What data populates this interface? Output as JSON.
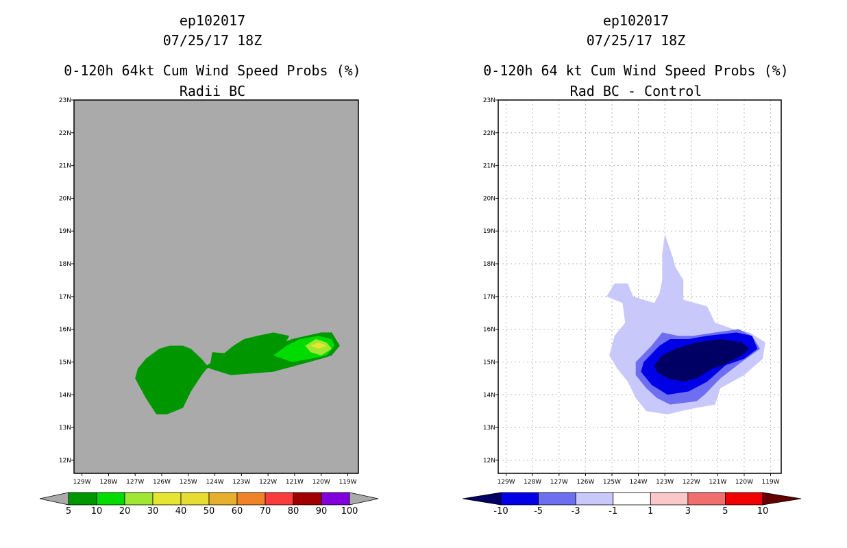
{
  "chart_data": [
    {
      "type": "contour-map",
      "storm_id": "ep102017",
      "date": "07/25/17 18Z",
      "title": "0-120h 64kt Cum Wind Speed Probs (%)",
      "subtitle": "Radii BC",
      "background_color": "#aaaaaa",
      "grid": false,
      "lon_ticks": [
        "129W",
        "128W",
        "127W",
        "126W",
        "125W",
        "124W",
        "123W",
        "122W",
        "121W",
        "120W",
        "119W"
      ],
      "lat_ticks": [
        "12N",
        "13N",
        "14N",
        "15N",
        "16N",
        "17N",
        "18N",
        "19N",
        "20N",
        "21N",
        "22N",
        "23N"
      ],
      "lon_range": [
        -129.3,
        -118.6
      ],
      "lat_range": [
        11.6,
        23.0
      ],
      "colorbar": {
        "labels": [
          "5",
          "10",
          "20",
          "30",
          "40",
          "50",
          "60",
          "70",
          "80",
          "90",
          "100"
        ],
        "colors": [
          "#009600",
          "#00dc00",
          "#a0e632",
          "#e6e632",
          "#e6dc32",
          "#e6af2d",
          "#f08228",
          "#fa3c3c",
          "#a00000",
          "#8200dc"
        ],
        "under_color": "#aaaaaa",
        "over_color": "#aaaaaa"
      },
      "contours": [
        {
          "level": "5-10",
          "color": "#009600",
          "lonlat": [
            [
              -127.0,
              14.5
            ],
            [
              -126.6,
              13.9
            ],
            [
              -126.2,
              13.4
            ],
            [
              -125.8,
              13.4
            ],
            [
              -125.2,
              13.6
            ],
            [
              -124.9,
              14.1
            ],
            [
              -124.5,
              14.6
            ],
            [
              -124.3,
              14.8
            ],
            [
              -123.9,
              14.9
            ],
            [
              -123.5,
              15.1
            ],
            [
              -123.1,
              15.2
            ],
            [
              -122.6,
              15.2
            ],
            [
              -121.8,
              15.3
            ],
            [
              -121.4,
              15.5
            ],
            [
              -121.2,
              15.8
            ],
            [
              -121.8,
              15.9
            ],
            [
              -122.4,
              15.8
            ],
            [
              -122.9,
              15.7
            ],
            [
              -123.3,
              15.5
            ],
            [
              -123.9,
              15.1
            ],
            [
              -124.3,
              14.9
            ],
            [
              -124.5,
              15.1
            ],
            [
              -124.9,
              15.4
            ],
            [
              -125.2,
              15.5
            ],
            [
              -125.7,
              15.5
            ],
            [
              -126.1,
              15.4
            ],
            [
              -126.6,
              15.1
            ],
            [
              -126.9,
              14.8
            ]
          ]
        },
        {
          "level": "5-10",
          "color": "#009600",
          "lonlat": [
            [
              -124.1,
              15.3
            ],
            [
              -122.6,
              15.2
            ],
            [
              -121.1,
              15.7
            ],
            [
              -120.0,
              15.9
            ],
            [
              -119.6,
              15.9
            ],
            [
              -119.3,
              15.5
            ],
            [
              -119.6,
              15.2
            ],
            [
              -120.0,
              15.1
            ],
            [
              -120.9,
              14.9
            ],
            [
              -121.8,
              14.7
            ],
            [
              -123.4,
              14.6
            ],
            [
              -124.2,
              14.8
            ]
          ]
        },
        {
          "level": "10-20",
          "color": "#00dc00",
          "lonlat": [
            [
              -121.8,
              15.2
            ],
            [
              -121.3,
              15.5
            ],
            [
              -120.8,
              15.7
            ],
            [
              -120.1,
              15.8
            ],
            [
              -119.6,
              15.7
            ],
            [
              -119.5,
              15.5
            ],
            [
              -119.8,
              15.2
            ],
            [
              -120.4,
              15.1
            ],
            [
              -121.1,
              15.0
            ]
          ]
        },
        {
          "level": "20-30",
          "color": "#a0e632",
          "lonlat": [
            [
              -120.6,
              15.5
            ],
            [
              -120.2,
              15.7
            ],
            [
              -119.8,
              15.6
            ],
            [
              -119.6,
              15.4
            ],
            [
              -120.0,
              15.2
            ],
            [
              -120.4,
              15.3
            ]
          ]
        },
        {
          "level": "30-40",
          "color": "#e6e632",
          "lonlat": [
            [
              -120.4,
              15.5
            ],
            [
              -120.1,
              15.6
            ],
            [
              -119.8,
              15.5
            ],
            [
              -120.1,
              15.4
            ]
          ]
        }
      ]
    },
    {
      "type": "contour-map",
      "storm_id": "ep102017",
      "date": "07/25/17 18Z",
      "title": "0-120h 64 kt Cum Wind Speed Probs (%)",
      "subtitle": "Rad BC - Control",
      "background_color": "#ffffff",
      "grid": true,
      "lon_ticks": [
        "129W",
        "128W",
        "127W",
        "126W",
        "125W",
        "124W",
        "123W",
        "122W",
        "121W",
        "120W",
        "119W"
      ],
      "lat_ticks": [
        "12N",
        "13N",
        "14N",
        "15N",
        "16N",
        "17N",
        "18N",
        "19N",
        "20N",
        "21N",
        "22N",
        "23N"
      ],
      "lon_range": [
        -129.3,
        -118.6
      ],
      "lat_range": [
        11.6,
        23.0
      ],
      "colorbar": {
        "labels": [
          "-10",
          "-5",
          "-3",
          "-1",
          "1",
          "3",
          "5",
          "10"
        ],
        "colors": [
          "#0000e6",
          "#6e6ef0",
          "#c8c8fa",
          "#ffffff",
          "#fac8c8",
          "#f06e6e",
          "#f00000"
        ],
        "under_color": "#000064",
        "over_color": "#640000"
      },
      "contours": [
        {
          "level": "-3 to -1",
          "color": "#c8c8fa",
          "lonlat": [
            [
              -125.2,
              17.0
            ],
            [
              -124.9,
              17.4
            ],
            [
              -124.4,
              17.4
            ],
            [
              -124.2,
              17.0
            ],
            [
              -123.4,
              16.8
            ],
            [
              -123.2,
              17.1
            ],
            [
              -123.1,
              17.5
            ],
            [
              -123.1,
              18.3
            ],
            [
              -123.0,
              18.9
            ],
            [
              -122.7,
              18.2
            ],
            [
              -122.6,
              17.9
            ],
            [
              -122.3,
              17.5
            ],
            [
              -122.3,
              16.9
            ],
            [
              -121.4,
              16.7
            ],
            [
              -121.1,
              16.2
            ],
            [
              -120.4,
              16.0
            ],
            [
              -119.8,
              15.9
            ],
            [
              -119.2,
              15.6
            ],
            [
              -119.3,
              15.1
            ],
            [
              -120.0,
              14.6
            ],
            [
              -120.9,
              14.2
            ],
            [
              -121.1,
              13.7
            ],
            [
              -121.8,
              13.6
            ],
            [
              -122.4,
              13.5
            ],
            [
              -122.9,
              13.4
            ],
            [
              -123.7,
              13.5
            ],
            [
              -124.1,
              13.9
            ],
            [
              -124.4,
              14.4
            ],
            [
              -124.8,
              14.8
            ],
            [
              -125.1,
              15.2
            ],
            [
              -124.9,
              15.8
            ],
            [
              -124.5,
              16.2
            ],
            [
              -124.6,
              16.8
            ]
          ]
        },
        {
          "level": "-5 to -3",
          "color": "#6e6ef0",
          "lonlat": [
            [
              -124.1,
              14.6
            ],
            [
              -123.7,
              14.2
            ],
            [
              -123.3,
              13.9
            ],
            [
              -122.8,
              13.7
            ],
            [
              -121.8,
              13.8
            ],
            [
              -121.5,
              14.0
            ],
            [
              -120.9,
              14.5
            ],
            [
              -120.1,
              15.0
            ],
            [
              -119.4,
              15.4
            ],
            [
              -119.7,
              15.8
            ],
            [
              -120.2,
              16.0
            ],
            [
              -121.1,
              15.9
            ],
            [
              -121.9,
              15.8
            ],
            [
              -122.5,
              15.8
            ],
            [
              -123.1,
              15.9
            ],
            [
              -123.5,
              15.5
            ],
            [
              -124.1,
              15.0
            ]
          ]
        },
        {
          "level": "-10 to -5",
          "color": "#0000e6",
          "lonlat": [
            [
              -123.9,
              14.7
            ],
            [
              -123.5,
              14.3
            ],
            [
              -122.9,
              14.0
            ],
            [
              -122.1,
              14.1
            ],
            [
              -121.4,
              14.4
            ],
            [
              -120.7,
              14.9
            ],
            [
              -120.0,
              15.1
            ],
            [
              -119.5,
              15.4
            ],
            [
              -119.7,
              15.8
            ],
            [
              -120.3,
              15.9
            ],
            [
              -121.4,
              15.8
            ],
            [
              -122.1,
              15.7
            ],
            [
              -122.8,
              15.7
            ],
            [
              -123.2,
              15.5
            ],
            [
              -123.8,
              15.0
            ]
          ]
        },
        {
          "level": "< -10",
          "color": "#000064",
          "lonlat": [
            [
              -123.3,
              14.7
            ],
            [
              -122.9,
              14.5
            ],
            [
              -122.3,
              14.4
            ],
            [
              -121.8,
              14.5
            ],
            [
              -121.2,
              14.8
            ],
            [
              -120.8,
              14.9
            ],
            [
              -120.1,
              15.2
            ],
            [
              -119.8,
              15.4
            ],
            [
              -120.1,
              15.6
            ],
            [
              -120.9,
              15.7
            ],
            [
              -121.8,
              15.6
            ],
            [
              -122.6,
              15.4
            ],
            [
              -123.1,
              15.2
            ],
            [
              -123.4,
              14.9
            ]
          ]
        }
      ]
    }
  ]
}
